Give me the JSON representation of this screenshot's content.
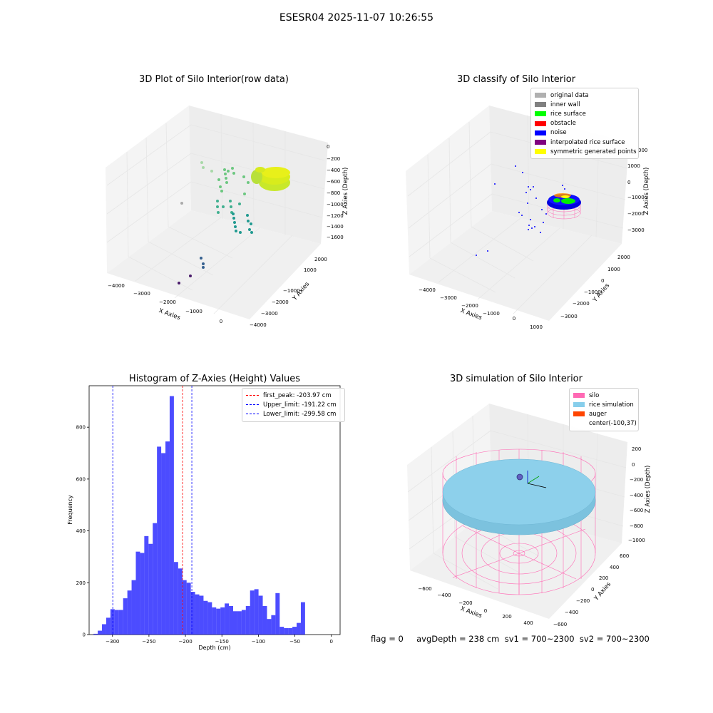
{
  "figure": {
    "suptitle": "ESESR04 2025-11-07 10:26:55"
  },
  "plots": {
    "raw": {
      "title": "3D Plot of Silo Interior(row data)",
      "xlabel": "X Axies",
      "ylabel": "Y Axies",
      "zlabel": "Z Axies (Depth)",
      "xticks": [
        "−4000",
        "−3000",
        "−2000",
        "−1000",
        "0"
      ],
      "yticks": [
        "2000",
        "1000",
        "−1000",
        "−2000",
        "−3000",
        "−4000"
      ],
      "zticks": [
        "0",
        "−200",
        "−400",
        "−600",
        "−800",
        "−1000",
        "−1200",
        "−1400",
        "−1600"
      ]
    },
    "classify": {
      "title": "3D classify of Silo Interior",
      "xlabel": "X Axies",
      "ylabel": "Y Axies",
      "zlabel": "Z Axies (Depth)",
      "xticks": [
        "−4000",
        "−3000",
        "−2000",
        "−1000",
        "0",
        "1000"
      ],
      "yticks": [
        "2000",
        "1000",
        "0",
        "−1000",
        "−2000",
        "−3000"
      ],
      "zticks": [
        "1000",
        "0",
        "−1000",
        "−2000",
        "−3000"
      ],
      "ztick_partial": "000",
      "legend": [
        {
          "label": "original data",
          "color": "#b0b0b0"
        },
        {
          "label": "inner wall",
          "color": "#808080"
        },
        {
          "label": "rice surface",
          "color": "#00ff00"
        },
        {
          "label": "obstacle",
          "color": "#ff0000"
        },
        {
          "label": "noise",
          "color": "#0000ff"
        },
        {
          "label": "interpolated rice surface",
          "color": "#800080"
        },
        {
          "label": "symmetric generated points",
          "color": "#ffff00"
        }
      ]
    },
    "sim": {
      "title": "3D simulation of Silo Interior",
      "xlabel": "X Axies",
      "ylabel": "Y Axies",
      "zlabel": "Z Axies (Depth)",
      "xticks": [
        "−600",
        "−400",
        "−200",
        "0",
        "200",
        "400"
      ],
      "yticks": [
        "600",
        "400",
        "200",
        "0",
        "−200",
        "−400",
        "−600"
      ],
      "zticks": [
        "200",
        "0",
        "−200",
        "−400",
        "−600",
        "−800",
        "−1000"
      ],
      "legend": [
        {
          "label": "silo",
          "color": "#ff69b4"
        },
        {
          "label": "rice simulation",
          "color": "#87ceeb"
        },
        {
          "label": "auger",
          "color": "#ff4500"
        },
        {
          "label": "center(-100,37)",
          "color": ""
        }
      ]
    }
  },
  "chart_data": {
    "type": "bar",
    "title": "Histogram of Z-Axies (Height) Values",
    "xlabel": "Depth (cm)",
    "ylabel": "Frequency",
    "xlim": [
      -332,
      12
    ],
    "ylim": [
      0,
      960
    ],
    "xticks": [
      -300,
      -250,
      -200,
      -150,
      -100,
      -50,
      0
    ],
    "xtick_labels": [
      "−300",
      "−250",
      "−200",
      "−150",
      "−100",
      "−50",
      "0"
    ],
    "yticks": [
      0,
      200,
      400,
      600,
      800
    ],
    "bar_color": "#0000ff",
    "bins_start": -326,
    "bin_width": 5.8,
    "values": [
      3,
      15,
      40,
      65,
      98,
      95,
      95,
      140,
      170,
      210,
      320,
      315,
      380,
      350,
      430,
      725,
      700,
      745,
      920,
      280,
      255,
      210,
      200,
      165,
      155,
      150,
      130,
      125,
      105,
      100,
      105,
      120,
      110,
      90,
      90,
      95,
      110,
      170,
      175,
      150,
      110,
      60,
      75,
      160,
      30,
      25,
      25,
      30,
      45,
      125
    ],
    "vlines": [
      {
        "label": "first_peak: -203.97 cm",
        "x": -203.97,
        "color": "#ff0000"
      },
      {
        "label": "Upper_limit: -191.22 cm",
        "x": -191.22,
        "color": "#0000ff"
      },
      {
        "label": "Lower_limit: -299.58 cm",
        "x": -299.58,
        "color": "#0000ff"
      }
    ]
  },
  "status": {
    "text": "flag = 0     avgDepth = 238 cm  sv1 = 700~2300  sv2 = 700~2300"
  }
}
